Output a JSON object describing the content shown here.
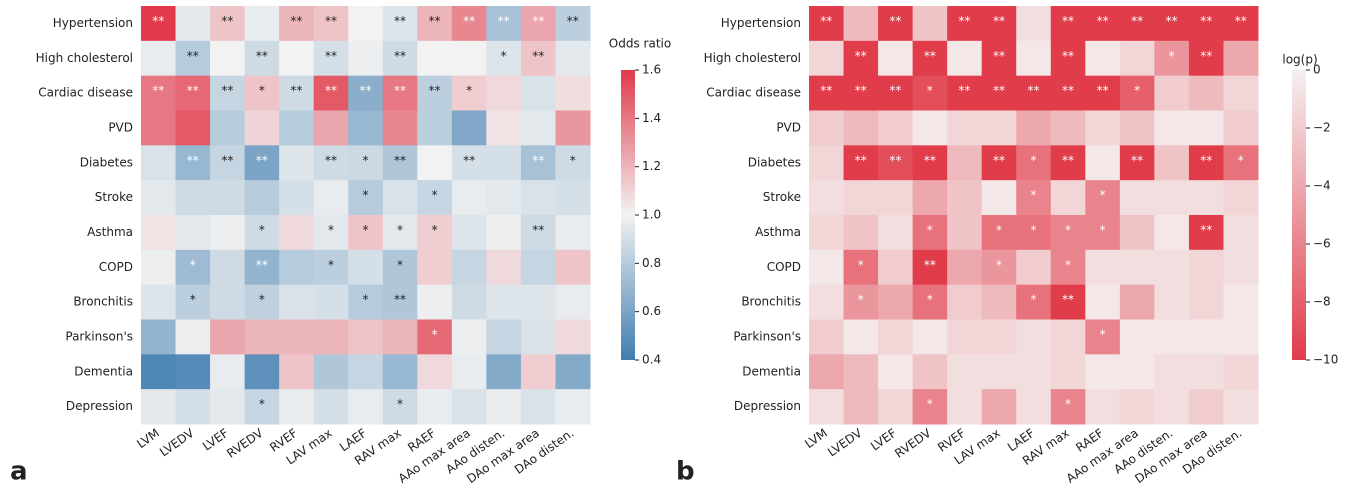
{
  "chart_data": [
    {
      "type": "heatmap",
      "panel_label": "a",
      "colorbar_label": "Odds ratio",
      "rows": [
        "Hypertension",
        "High cholesterol",
        "Cardiac disease",
        "PVD",
        "Diabetes",
        "Stroke",
        "Asthma",
        "COPD",
        "Bronchitis",
        "Parkinson's",
        "Dementia",
        "Depression"
      ],
      "columns": [
        "LVM",
        "LVEDV",
        "LVEF",
        "RVEDV",
        "RVEF",
        "LAV max",
        "LAEF",
        "RAV max",
        "RAEF",
        "AAo max area",
        "AAo disten.",
        "DAo max area",
        "DAo disten."
      ],
      "values": [
        [
          1.6,
          0.95,
          1.15,
          0.97,
          1.2,
          1.15,
          1.0,
          0.93,
          1.2,
          1.35,
          0.75,
          1.25,
          0.82
        ],
        [
          0.97,
          0.8,
          1.0,
          0.88,
          1.0,
          0.9,
          0.98,
          0.88,
          1.0,
          1.0,
          0.93,
          1.15,
          0.95
        ],
        [
          1.4,
          1.45,
          0.85,
          1.15,
          0.88,
          1.5,
          0.65,
          1.4,
          0.82,
          1.12,
          1.08,
          0.92,
          1.07
        ],
        [
          1.4,
          1.5,
          0.8,
          1.1,
          0.8,
          1.25,
          0.7,
          1.35,
          0.82,
          0.62,
          1.05,
          0.95,
          1.3
        ],
        [
          0.92,
          0.7,
          0.85,
          0.6,
          0.93,
          0.88,
          0.87,
          0.78,
          1.0,
          0.9,
          0.9,
          0.75,
          0.88
        ],
        [
          0.95,
          0.88,
          0.88,
          0.8,
          0.9,
          0.97,
          0.8,
          0.92,
          0.85,
          0.97,
          0.95,
          0.92,
          0.9
        ],
        [
          1.05,
          0.95,
          0.98,
          0.88,
          1.08,
          0.95,
          1.15,
          0.95,
          1.12,
          0.93,
          0.98,
          0.88,
          0.97
        ],
        [
          0.98,
          0.72,
          0.88,
          0.68,
          0.8,
          0.82,
          0.9,
          0.78,
          1.12,
          0.85,
          1.08,
          0.85,
          1.15
        ],
        [
          0.93,
          0.82,
          0.88,
          0.83,
          0.92,
          0.9,
          0.8,
          0.78,
          0.98,
          0.88,
          0.93,
          0.93,
          0.97
        ],
        [
          0.68,
          0.98,
          1.25,
          1.2,
          1.2,
          1.2,
          1.15,
          1.2,
          1.45,
          0.98,
          0.85,
          0.92,
          1.08
        ],
        [
          0.45,
          0.47,
          0.97,
          0.5,
          1.15,
          0.78,
          0.85,
          0.7,
          1.08,
          0.97,
          0.63,
          1.12,
          0.63
        ],
        [
          0.95,
          0.9,
          0.95,
          0.85,
          0.97,
          0.9,
          0.97,
          0.88,
          0.97,
          0.92,
          0.97,
          0.92,
          0.97
        ]
      ],
      "annotations": [
        [
          "**",
          null,
          "**",
          null,
          "**",
          "**",
          null,
          "**",
          "**",
          "**",
          "**",
          "**",
          "**"
        ],
        [
          null,
          "**",
          null,
          "**",
          null,
          "**",
          null,
          "**",
          null,
          null,
          "*",
          "**",
          null
        ],
        [
          "**",
          "**",
          "**",
          "*",
          "**",
          "**",
          "**",
          "**",
          "**",
          "*",
          null,
          null,
          null
        ],
        [
          null,
          null,
          null,
          null,
          null,
          null,
          null,
          null,
          null,
          null,
          null,
          null,
          null
        ],
        [
          null,
          "**",
          "**",
          "**",
          null,
          "**",
          "*",
          "**",
          null,
          "**",
          null,
          "**",
          "*"
        ],
        [
          null,
          null,
          null,
          null,
          null,
          null,
          "*",
          null,
          "*",
          null,
          null,
          null,
          null
        ],
        [
          null,
          null,
          null,
          "*",
          null,
          "*",
          "*",
          "*",
          "*",
          null,
          null,
          "**",
          null
        ],
        [
          null,
          "*",
          null,
          "**",
          null,
          "*",
          null,
          "*",
          null,
          null,
          null,
          null,
          null
        ],
        [
          null,
          "*",
          null,
          "*",
          null,
          null,
          "*",
          "**",
          null,
          null,
          null,
          null,
          null
        ],
        [
          null,
          null,
          null,
          null,
          null,
          null,
          null,
          null,
          "*",
          null,
          null,
          null,
          null
        ],
        [
          null,
          null,
          null,
          null,
          null,
          null,
          null,
          null,
          null,
          null,
          null,
          null,
          null
        ],
        [
          null,
          null,
          null,
          "*",
          null,
          null,
          null,
          "*",
          null,
          null,
          null,
          null,
          null
        ]
      ],
      "clim": [
        0.4,
        1.6
      ],
      "cticks": [
        0.4,
        0.6,
        0.8,
        {
          "value": 1,
          "label": "1.0"
        },
        1.2,
        1.4,
        1.6
      ],
      "colors": [
        "#3f7db0",
        "#f2f2f2",
        "#e13a4a"
      ]
    },
    {
      "type": "heatmap",
      "panel_label": "b",
      "colorbar_label": "log(p)",
      "rows": [
        "Hypertension",
        "High cholesterol",
        "Cardiac disease",
        "PVD",
        "Diabetes",
        "Stroke",
        "Asthma",
        "COPD",
        "Bronchitis",
        "Parkinson's",
        "Dementia",
        "Depression"
      ],
      "columns": [
        "LVM",
        "LVEDV",
        "LVEF",
        "RVEDV",
        "RVEF",
        "LAV max",
        "LAEF",
        "RAV max",
        "RAEF",
        "AAo max area",
        "AAo disten.",
        "DAo max area",
        "DAo disten."
      ],
      "values": [
        [
          -10,
          -3,
          -10,
          -2.5,
          -10,
          -10,
          -1,
          -10,
          -10,
          -10,
          -10,
          -10,
          -10
        ],
        [
          -1.5,
          -10,
          -0.5,
          -10,
          -0.5,
          -10,
          -0.5,
          -10,
          -0.5,
          -1.5,
          -5,
          -10,
          -4
        ],
        [
          -10,
          -10,
          -10,
          -9,
          -10,
          -10,
          -10,
          -10,
          -10,
          -8,
          -2,
          -3,
          -1.5
        ],
        [
          -2,
          -3,
          -2,
          -0.5,
          -1.5,
          -1.5,
          -4,
          -3,
          -1.5,
          -2.5,
          -0.5,
          -0.5,
          -2
        ],
        [
          -1.5,
          -10,
          -9,
          -10,
          -3,
          -10,
          -7,
          -10,
          -0.5,
          -10,
          -2.5,
          -10,
          -7
        ],
        [
          -1,
          -1.5,
          -1.5,
          -4,
          -2.5,
          -0.5,
          -6,
          -1.5,
          -6,
          -1,
          -1,
          -1,
          -1.5
        ],
        [
          -1.5,
          -2.5,
          -1,
          -7,
          -2.5,
          -7,
          -7,
          -6,
          -6,
          -2.5,
          -0.5,
          -10,
          -1
        ],
        [
          -0.5,
          -7,
          -2,
          -10,
          -4,
          -5,
          -2,
          -6,
          -1,
          -1,
          -1,
          -1.5,
          -1
        ],
        [
          -1,
          -5,
          -4,
          -7,
          -2,
          -3,
          -7,
          -10,
          -0.5,
          -4,
          -1,
          -1.5,
          -0.5
        ],
        [
          -2,
          -0.5,
          -1.5,
          -0.5,
          -1.5,
          -1.5,
          -1,
          -1.5,
          -6,
          -0.5,
          -0.5,
          -0.5,
          -0.5
        ],
        [
          -4,
          -3,
          -0.5,
          -2.5,
          -1,
          -1,
          -1,
          -1.5,
          -0.5,
          -0.5,
          -1,
          -1,
          -1.5
        ],
        [
          -1,
          -3,
          -1.5,
          -6,
          -1,
          -4,
          -1,
          -6,
          -1,
          -1.5,
          -1,
          -2,
          -1
        ]
      ],
      "annotations": [
        [
          "**",
          null,
          "**",
          null,
          "**",
          "**",
          null,
          "**",
          "**",
          "**",
          "**",
          "**",
          "**"
        ],
        [
          null,
          "**",
          null,
          "**",
          null,
          "**",
          null,
          "**",
          null,
          null,
          "*",
          "**",
          null
        ],
        [
          "**",
          "**",
          "**",
          "*",
          "**",
          "**",
          "**",
          "**",
          "**",
          "*",
          null,
          null,
          null
        ],
        [
          null,
          null,
          null,
          null,
          null,
          null,
          null,
          null,
          null,
          null,
          null,
          null,
          null
        ],
        [
          null,
          "**",
          "**",
          "**",
          null,
          "**",
          "*",
          "**",
          null,
          "**",
          null,
          "**",
          "*"
        ],
        [
          null,
          null,
          null,
          null,
          null,
          null,
          "*",
          null,
          "*",
          null,
          null,
          null,
          null
        ],
        [
          null,
          null,
          null,
          "*",
          null,
          "*",
          "*",
          "*",
          "*",
          null,
          null,
          "**",
          null
        ],
        [
          null,
          "*",
          null,
          "**",
          null,
          "*",
          null,
          "*",
          null,
          null,
          null,
          null,
          null
        ],
        [
          null,
          "*",
          null,
          "*",
          null,
          null,
          "*",
          "**",
          null,
          null,
          null,
          null,
          null
        ],
        [
          null,
          null,
          null,
          null,
          null,
          null,
          null,
          null,
          "*",
          null,
          null,
          null,
          null
        ],
        [
          null,
          null,
          null,
          null,
          null,
          null,
          null,
          null,
          null,
          null,
          null,
          null,
          null
        ],
        [
          null,
          null,
          null,
          "*",
          null,
          null,
          null,
          "*",
          null,
          null,
          null,
          null,
          null
        ]
      ],
      "clim": [
        -10,
        0
      ],
      "cticks": [
        0,
        {
          "value": -2,
          "label": "−2"
        },
        {
          "value": -4,
          "label": "−4"
        },
        {
          "value": -6,
          "label": "−6"
        },
        {
          "value": -8,
          "label": "−8"
        },
        {
          "value": -10,
          "label": "−10"
        }
      ],
      "colors": [
        "#e13c4a",
        "#f5f0f0"
      ]
    }
  ]
}
